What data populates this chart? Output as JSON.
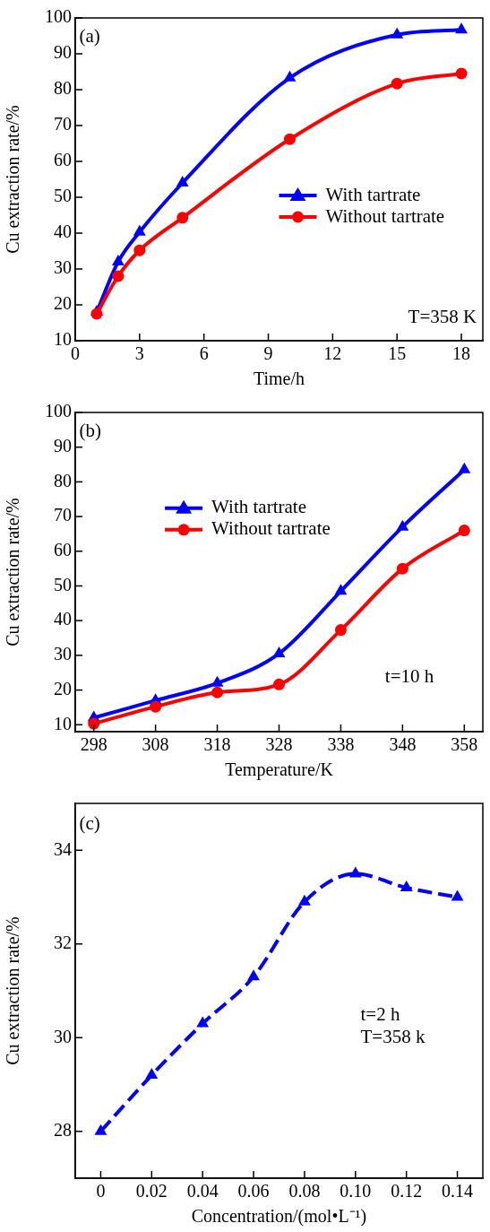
{
  "chart_data": [
    {
      "type": "line",
      "xlabel": "Time/h",
      "ylabel": "Cu extraction rate/%",
      "x": [
        1,
        2,
        3,
        5,
        10,
        15,
        18
      ],
      "series": [
        {
          "name": "With tartrate",
          "color": "#0000ff",
          "marker": "triangle",
          "values": [
            18,
            32,
            40.3,
            54,
            83.3,
            95.3,
            96.7
          ]
        },
        {
          "name": "Without tartrate",
          "color": "#ff0000",
          "marker": "circle",
          "values": [
            17.5,
            28,
            35.2,
            44.3,
            66.2,
            81.7,
            84.5
          ]
        }
      ],
      "xlim": [
        0,
        19
      ],
      "xticks": [
        0,
        3,
        6,
        9,
        12,
        15,
        18
      ],
      "ylim": [
        10,
        100
      ],
      "yticks": [
        10,
        20,
        30,
        40,
        50,
        60,
        70,
        80,
        90,
        100
      ],
      "legend": "right",
      "line_style": "solid",
      "annotations": [
        "(a)",
        "T=358 K"
      ]
    },
    {
      "type": "line",
      "xlabel": "Temperature/K",
      "ylabel": "Cu extraction rate/%",
      "x": [
        298,
        308,
        318,
        328,
        338,
        348,
        358
      ],
      "series": [
        {
          "name": "With tartrate",
          "color": "#0000ff",
          "marker": "triangle",
          "values": [
            12,
            17,
            22,
            30.5,
            48.5,
            67,
            83.5
          ]
        },
        {
          "name": "Without tartrate",
          "color": "#ff0000",
          "marker": "circle",
          "values": [
            10.3,
            15.2,
            19.3,
            21.6,
            37.3,
            55,
            66
          ]
        }
      ],
      "xlim": [
        295,
        361
      ],
      "xticks": [
        298,
        308,
        318,
        328,
        338,
        348,
        358
      ],
      "ylim": [
        8,
        100
      ],
      "yticks": [
        10,
        20,
        30,
        40,
        50,
        60,
        70,
        80,
        90,
        100
      ],
      "legend": "left",
      "line_style": "solid",
      "annotations": [
        "(b)",
        "t=10 h"
      ]
    },
    {
      "type": "line",
      "xlabel": "Concentration/(mol•L⁻¹)",
      "ylabel": "Cu extraction rate/%",
      "x": [
        0,
        0.02,
        0.04,
        0.06,
        0.08,
        0.1,
        0.12,
        0.14
      ],
      "series": [
        {
          "color": "#0000ff",
          "marker": "triangle",
          "values": [
            28.0,
            29.2,
            30.3,
            31.3,
            32.9,
            33.5,
            33.2,
            33.0
          ]
        }
      ],
      "xlim": [
        -0.01,
        0.15
      ],
      "xticks": [
        0,
        0.02,
        0.04,
        0.06,
        0.08,
        {
          "value": 0.1,
          "label": "0.10"
        },
        0.12,
        0.14
      ],
      "ylim": [
        27,
        35
      ],
      "yticks": [
        28,
        30,
        32,
        34
      ],
      "line_style": "dashed",
      "annotations": [
        "(c)",
        "t=2 h",
        "T=358 k"
      ]
    }
  ]
}
